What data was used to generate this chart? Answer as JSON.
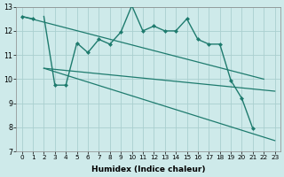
{
  "xlabel": "Humidex (Indice chaleur)",
  "xlim": [
    -0.5,
    23.5
  ],
  "ylim": [
    7,
    13
  ],
  "yticks": [
    7,
    8,
    9,
    10,
    11,
    12,
    13
  ],
  "xticks": [
    0,
    1,
    2,
    3,
    4,
    5,
    6,
    7,
    8,
    9,
    10,
    11,
    12,
    13,
    14,
    15,
    16,
    17,
    18,
    19,
    20,
    21,
    22,
    23
  ],
  "bg_color": "#ceeaea",
  "grid_color": "#aacfcf",
  "line_color": "#1e7b6e",
  "curve_x": [
    0,
    1,
    2,
    3,
    4,
    5,
    6,
    7,
    8,
    9,
    10,
    11,
    12,
    13,
    14,
    15,
    16,
    17,
    18,
    19,
    20,
    21,
    22,
    23
  ],
  "curve_y": [
    12.6,
    12.5,
    12.6,
    9.75,
    9.75,
    11.5,
    11.1,
    11.65,
    11.45,
    11.95,
    13.05,
    12.0,
    12.2,
    12.0,
    12.0,
    12.5,
    11.65,
    11.45,
    11.45,
    9.95,
    9.2,
    7.95,
    null,
    null
  ],
  "has_marker": [
    1,
    1,
    0,
    1,
    1,
    1,
    1,
    1,
    1,
    1,
    1,
    1,
    1,
    1,
    1,
    1,
    1,
    1,
    1,
    1,
    1,
    1,
    0,
    0
  ],
  "upper_line_x": [
    0,
    22
  ],
  "upper_line_y": [
    12.6,
    10.0
  ],
  "mid_line_x": [
    2,
    23
  ],
  "mid_line_y": [
    10.45,
    9.5
  ],
  "lower_line_x": [
    2,
    23
  ],
  "lower_line_y": [
    10.45,
    7.45
  ]
}
